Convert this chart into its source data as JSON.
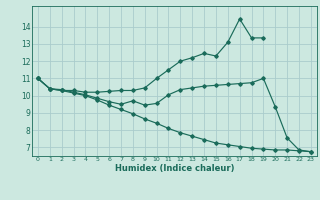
{
  "xlabel": "Humidex (Indice chaleur)",
  "bg_color": "#cce8e0",
  "grid_color": "#aacccc",
  "line_color": "#1a6b5a",
  "xlim": [
    -0.5,
    23.5
  ],
  "ylim": [
    6.5,
    15.2
  ],
  "xticks": [
    0,
    1,
    2,
    3,
    4,
    5,
    6,
    7,
    8,
    9,
    10,
    11,
    12,
    13,
    14,
    15,
    16,
    17,
    18,
    19,
    20,
    21,
    22,
    23
  ],
  "yticks": [
    7,
    8,
    9,
    10,
    11,
    12,
    13,
    14
  ],
  "line1_x": [
    0,
    1,
    2,
    3,
    4,
    5,
    6,
    7,
    8,
    9,
    10,
    11,
    12,
    13,
    14,
    15,
    16,
    17,
    18,
    19
  ],
  "line1_y": [
    11.0,
    10.4,
    10.3,
    10.3,
    10.2,
    10.2,
    10.25,
    10.3,
    10.3,
    10.45,
    11.0,
    11.5,
    12.0,
    12.2,
    12.45,
    12.3,
    13.1,
    14.45,
    13.35,
    13.35
  ],
  "line2_x": [
    0,
    1,
    2,
    3,
    4,
    5,
    6,
    7,
    8,
    9,
    10,
    11,
    12,
    13,
    14,
    15,
    16,
    17,
    18,
    19,
    20,
    21,
    22,
    23
  ],
  "line2_y": [
    11.0,
    10.4,
    10.35,
    10.2,
    10.05,
    9.85,
    9.65,
    9.5,
    9.7,
    9.45,
    9.55,
    10.05,
    10.35,
    10.45,
    10.55,
    10.6,
    10.65,
    10.7,
    10.75,
    11.0,
    9.35,
    7.55,
    6.85,
    6.75
  ],
  "line3_x": [
    0,
    1,
    2,
    3,
    4,
    5,
    6,
    7,
    8,
    9,
    10,
    11,
    12,
    13,
    14,
    15,
    16,
    17,
    18,
    19,
    20,
    21,
    22,
    23
  ],
  "line3_y": [
    11.0,
    10.4,
    10.3,
    10.15,
    10.0,
    9.75,
    9.45,
    9.2,
    8.95,
    8.65,
    8.4,
    8.1,
    7.85,
    7.65,
    7.45,
    7.25,
    7.15,
    7.05,
    6.95,
    6.9,
    6.85,
    6.85,
    6.8,
    6.75
  ]
}
